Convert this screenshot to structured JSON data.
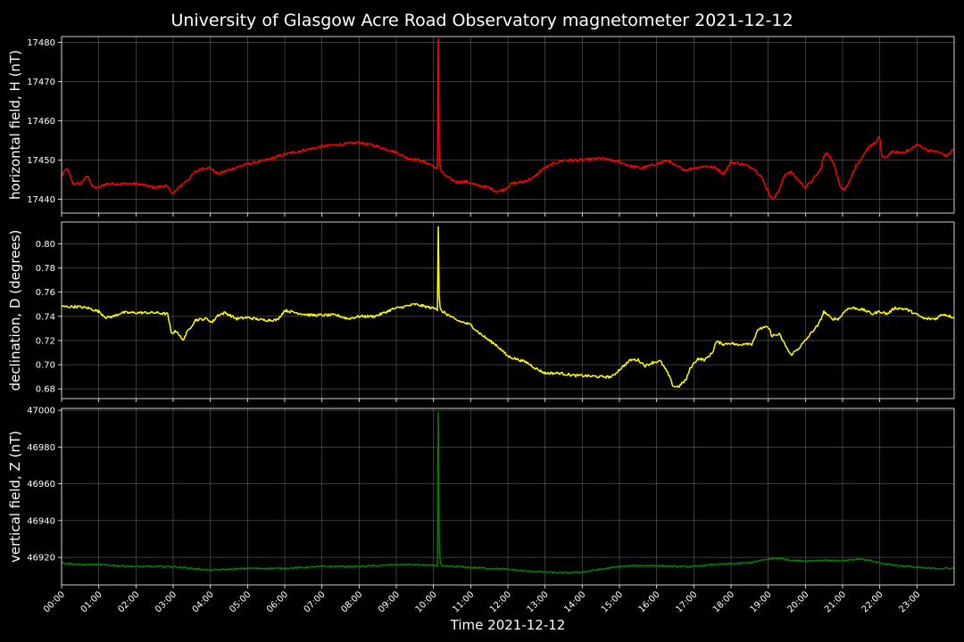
{
  "chart_data": {
    "type": "line",
    "title": "University of Glasgow Acre Road Observatory magnetometer 2021-12-12",
    "xlabel": "Time 2021-12-12",
    "x_ticks": [
      "00:00",
      "01:00",
      "02:00",
      "03:00",
      "04:00",
      "05:00",
      "06:00",
      "07:00",
      "08:00",
      "09:00",
      "10:00",
      "11:00",
      "12:00",
      "13:00",
      "14:00",
      "15:00",
      "16:00",
      "17:00",
      "18:00",
      "19:00",
      "20:00",
      "21:00",
      "22:00",
      "23:00"
    ],
    "xlim_hours": [
      0,
      24
    ],
    "grid": true,
    "panels": [
      {
        "name": "H",
        "ylabel": "horizontal field, H (nT)",
        "color": "#ff0000",
        "ylim": [
          17436.5,
          17481.5
        ],
        "yticks": [
          17440,
          17450,
          17460,
          17470,
          17480
        ],
        "tick_decimals": 0,
        "noise": 0.35,
        "spike": {
          "hour": 10.12,
          "value": 17481
        },
        "series": [
          [
            0.0,
            17446
          ],
          [
            0.15,
            17448
          ],
          [
            0.3,
            17444
          ],
          [
            0.5,
            17444
          ],
          [
            0.7,
            17446
          ],
          [
            0.85,
            17443
          ],
          [
            1.0,
            17443
          ],
          [
            1.2,
            17444
          ],
          [
            1.5,
            17444
          ],
          [
            1.8,
            17444
          ],
          [
            2.0,
            17444
          ],
          [
            2.3,
            17443.5
          ],
          [
            2.5,
            17443
          ],
          [
            2.8,
            17443.5
          ],
          [
            3.0,
            17441.5
          ],
          [
            3.2,
            17443.5
          ],
          [
            3.4,
            17445
          ],
          [
            3.6,
            17447
          ],
          [
            3.8,
            17448
          ],
          [
            4.0,
            17448
          ],
          [
            4.2,
            17446.5
          ],
          [
            4.5,
            17447.5
          ],
          [
            4.8,
            17448.5
          ],
          [
            5.0,
            17449
          ],
          [
            5.5,
            17450
          ],
          [
            6.0,
            17451.5
          ],
          [
            6.5,
            17452.5
          ],
          [
            7.0,
            17453.5
          ],
          [
            7.5,
            17454
          ],
          [
            8.0,
            17454.5
          ],
          [
            8.5,
            17453.5
          ],
          [
            9.0,
            17452
          ],
          [
            9.3,
            17450.5
          ],
          [
            9.6,
            17450
          ],
          [
            9.9,
            17449
          ],
          [
            10.05,
            17448
          ],
          [
            10.2,
            17447
          ],
          [
            10.4,
            17445.5
          ],
          [
            10.6,
            17444.5
          ],
          [
            10.9,
            17444.5
          ],
          [
            11.2,
            17443.5
          ],
          [
            11.5,
            17443
          ],
          [
            11.7,
            17442
          ],
          [
            11.9,
            17442.5
          ],
          [
            12.1,
            17444
          ],
          [
            12.4,
            17444.5
          ],
          [
            12.7,
            17445.5
          ],
          [
            12.9,
            17447.5
          ],
          [
            13.2,
            17449
          ],
          [
            13.5,
            17450
          ],
          [
            14.0,
            17450
          ],
          [
            14.5,
            17450.5
          ],
          [
            15.0,
            17449.5
          ],
          [
            15.3,
            17448.5
          ],
          [
            15.6,
            17448
          ],
          [
            16.0,
            17449
          ],
          [
            16.3,
            17450
          ],
          [
            16.5,
            17448.5
          ],
          [
            16.8,
            17447.5
          ],
          [
            17.0,
            17448
          ],
          [
            17.3,
            17448.5
          ],
          [
            17.6,
            17448
          ],
          [
            17.8,
            17446.5
          ],
          [
            18.0,
            17449.5
          ],
          [
            18.3,
            17449
          ],
          [
            18.6,
            17448
          ],
          [
            18.8,
            17446
          ],
          [
            19.0,
            17442
          ],
          [
            19.1,
            17440
          ],
          [
            19.2,
            17441
          ],
          [
            19.3,
            17442.5
          ],
          [
            19.45,
            17446.5
          ],
          [
            19.6,
            17447
          ],
          [
            19.8,
            17445
          ],
          [
            20.0,
            17443
          ],
          [
            20.2,
            17445
          ],
          [
            20.4,
            17447.5
          ],
          [
            20.5,
            17451
          ],
          [
            20.6,
            17452
          ],
          [
            20.8,
            17448
          ],
          [
            20.95,
            17443
          ],
          [
            21.05,
            17442.5
          ],
          [
            21.2,
            17445
          ],
          [
            21.35,
            17448.5
          ],
          [
            21.5,
            17450
          ],
          [
            21.7,
            17453.5
          ],
          [
            21.9,
            17454.5
          ],
          [
            22.0,
            17456
          ],
          [
            22.05,
            17451
          ],
          [
            22.15,
            17450.5
          ],
          [
            22.3,
            17452
          ],
          [
            22.6,
            17452
          ],
          [
            22.8,
            17452.5
          ],
          [
            23.0,
            17454
          ],
          [
            23.3,
            17452.5
          ],
          [
            23.6,
            17452
          ],
          [
            23.8,
            17451
          ],
          [
            24.0,
            17453
          ]
        ]
      },
      {
        "name": "D",
        "ylabel": "declination, D (degrees)",
        "color": "#ffff00",
        "ylim": [
          0.672,
          0.818
        ],
        "yticks": [
          0.68,
          0.7,
          0.72,
          0.74,
          0.76,
          0.78,
          0.8
        ],
        "tick_decimals": 2,
        "noise": 0.0011,
        "spike": {
          "hour": 10.12,
          "value": 0.814
        },
        "series": [
          [
            0.0,
            0.748
          ],
          [
            0.4,
            0.748
          ],
          [
            0.7,
            0.747
          ],
          [
            1.0,
            0.744
          ],
          [
            1.2,
            0.739
          ],
          [
            1.4,
            0.74
          ],
          [
            1.6,
            0.743
          ],
          [
            2.0,
            0.743
          ],
          [
            2.5,
            0.743
          ],
          [
            2.85,
            0.742
          ],
          [
            2.95,
            0.726
          ],
          [
            3.1,
            0.728
          ],
          [
            3.25,
            0.72
          ],
          [
            3.4,
            0.728
          ],
          [
            3.6,
            0.737
          ],
          [
            3.9,
            0.738
          ],
          [
            4.05,
            0.735
          ],
          [
            4.2,
            0.741
          ],
          [
            4.4,
            0.743
          ],
          [
            4.7,
            0.738
          ],
          [
            5.0,
            0.739
          ],
          [
            5.4,
            0.737
          ],
          [
            5.8,
            0.737
          ],
          [
            6.0,
            0.745
          ],
          [
            6.3,
            0.743
          ],
          [
            6.7,
            0.741
          ],
          [
            7.0,
            0.741
          ],
          [
            7.4,
            0.741
          ],
          [
            7.7,
            0.738
          ],
          [
            8.0,
            0.74
          ],
          [
            8.4,
            0.74
          ],
          [
            8.6,
            0.742
          ],
          [
            8.9,
            0.746
          ],
          [
            9.2,
            0.748
          ],
          [
            9.5,
            0.75
          ],
          [
            9.8,
            0.748
          ],
          [
            10.1,
            0.746
          ],
          [
            10.3,
            0.743
          ],
          [
            10.6,
            0.737
          ],
          [
            11.0,
            0.733
          ],
          [
            11.2,
            0.727
          ],
          [
            11.5,
            0.72
          ],
          [
            11.7,
            0.716
          ],
          [
            12.0,
            0.707
          ],
          [
            12.2,
            0.705
          ],
          [
            12.5,
            0.702
          ],
          [
            12.8,
            0.696
          ],
          [
            13.0,
            0.693
          ],
          [
            13.4,
            0.693
          ],
          [
            13.8,
            0.691
          ],
          [
            14.0,
            0.691
          ],
          [
            14.5,
            0.69
          ],
          [
            14.8,
            0.69
          ],
          [
            15.0,
            0.696
          ],
          [
            15.3,
            0.704
          ],
          [
            15.5,
            0.704
          ],
          [
            15.7,
            0.699
          ],
          [
            15.9,
            0.702
          ],
          [
            16.1,
            0.703
          ],
          [
            16.3,
            0.693
          ],
          [
            16.45,
            0.682
          ],
          [
            16.6,
            0.682
          ],
          [
            16.8,
            0.688
          ],
          [
            16.9,
            0.697
          ],
          [
            17.1,
            0.705
          ],
          [
            17.3,
            0.704
          ],
          [
            17.5,
            0.71
          ],
          [
            17.6,
            0.719
          ],
          [
            17.8,
            0.717
          ],
          [
            18.0,
            0.718
          ],
          [
            18.2,
            0.716
          ],
          [
            18.4,
            0.718
          ],
          [
            18.55,
            0.717
          ],
          [
            18.75,
            0.73
          ],
          [
            19.0,
            0.731
          ],
          [
            19.1,
            0.724
          ],
          [
            19.3,
            0.725
          ],
          [
            19.5,
            0.714
          ],
          [
            19.6,
            0.708
          ],
          [
            19.8,
            0.713
          ],
          [
            20.0,
            0.72
          ],
          [
            20.2,
            0.728
          ],
          [
            20.35,
            0.733
          ],
          [
            20.5,
            0.744
          ],
          [
            20.7,
            0.738
          ],
          [
            20.9,
            0.738
          ],
          [
            21.1,
            0.746
          ],
          [
            21.3,
            0.747
          ],
          [
            21.6,
            0.745
          ],
          [
            21.8,
            0.742
          ],
          [
            22.0,
            0.744
          ],
          [
            22.2,
            0.742
          ],
          [
            22.4,
            0.747
          ],
          [
            22.7,
            0.746
          ],
          [
            22.9,
            0.743
          ],
          [
            23.2,
            0.738
          ],
          [
            23.5,
            0.738
          ],
          [
            23.7,
            0.742
          ],
          [
            24.0,
            0.739
          ]
        ]
      },
      {
        "name": "Z",
        "ylabel": "vertical field, Z (nT)",
        "color": "#008000",
        "ylim": [
          46905,
          47001
        ],
        "yticks": [
          46920,
          46940,
          46960,
          46980,
          47000
        ],
        "tick_decimals": 0,
        "noise": 0.45,
        "spike": {
          "hour": 10.12,
          "value": 46999
        },
        "series": [
          [
            0.0,
            46917
          ],
          [
            0.5,
            46916
          ],
          [
            1.0,
            46916
          ],
          [
            1.5,
            46915.5
          ],
          [
            2.0,
            46915
          ],
          [
            2.5,
            46915
          ],
          [
            3.0,
            46915
          ],
          [
            3.5,
            46914
          ],
          [
            4.0,
            46913
          ],
          [
            4.5,
            46913.5
          ],
          [
            5.0,
            46914
          ],
          [
            5.5,
            46914
          ],
          [
            6.0,
            46914
          ],
          [
            6.5,
            46914.5
          ],
          [
            7.0,
            46915
          ],
          [
            7.5,
            46915
          ],
          [
            8.0,
            46915
          ],
          [
            8.5,
            46915.5
          ],
          [
            9.0,
            46916
          ],
          [
            9.5,
            46916
          ],
          [
            10.0,
            46915.5
          ],
          [
            10.3,
            46915
          ],
          [
            10.6,
            46915
          ],
          [
            11.0,
            46914.5
          ],
          [
            11.5,
            46914
          ],
          [
            12.0,
            46913.5
          ],
          [
            12.5,
            46912.5
          ],
          [
            13.0,
            46912
          ],
          [
            13.5,
            46911.5
          ],
          [
            14.0,
            46912
          ],
          [
            14.5,
            46913.5
          ],
          [
            15.0,
            46915
          ],
          [
            15.5,
            46915.5
          ],
          [
            16.0,
            46915.5
          ],
          [
            16.5,
            46915
          ],
          [
            17.0,
            46915
          ],
          [
            17.5,
            46916
          ],
          [
            18.0,
            46916.5
          ],
          [
            18.5,
            46917
          ],
          [
            19.0,
            46919
          ],
          [
            19.3,
            46919.5
          ],
          [
            19.6,
            46918.5
          ],
          [
            20.0,
            46918
          ],
          [
            20.5,
            46918.5
          ],
          [
            21.0,
            46918
          ],
          [
            21.4,
            46919
          ],
          [
            21.7,
            46918.5
          ],
          [
            22.0,
            46917
          ],
          [
            22.3,
            46916
          ],
          [
            22.8,
            46915
          ],
          [
            23.3,
            46914
          ],
          [
            24.0,
            46914
          ]
        ]
      }
    ]
  }
}
